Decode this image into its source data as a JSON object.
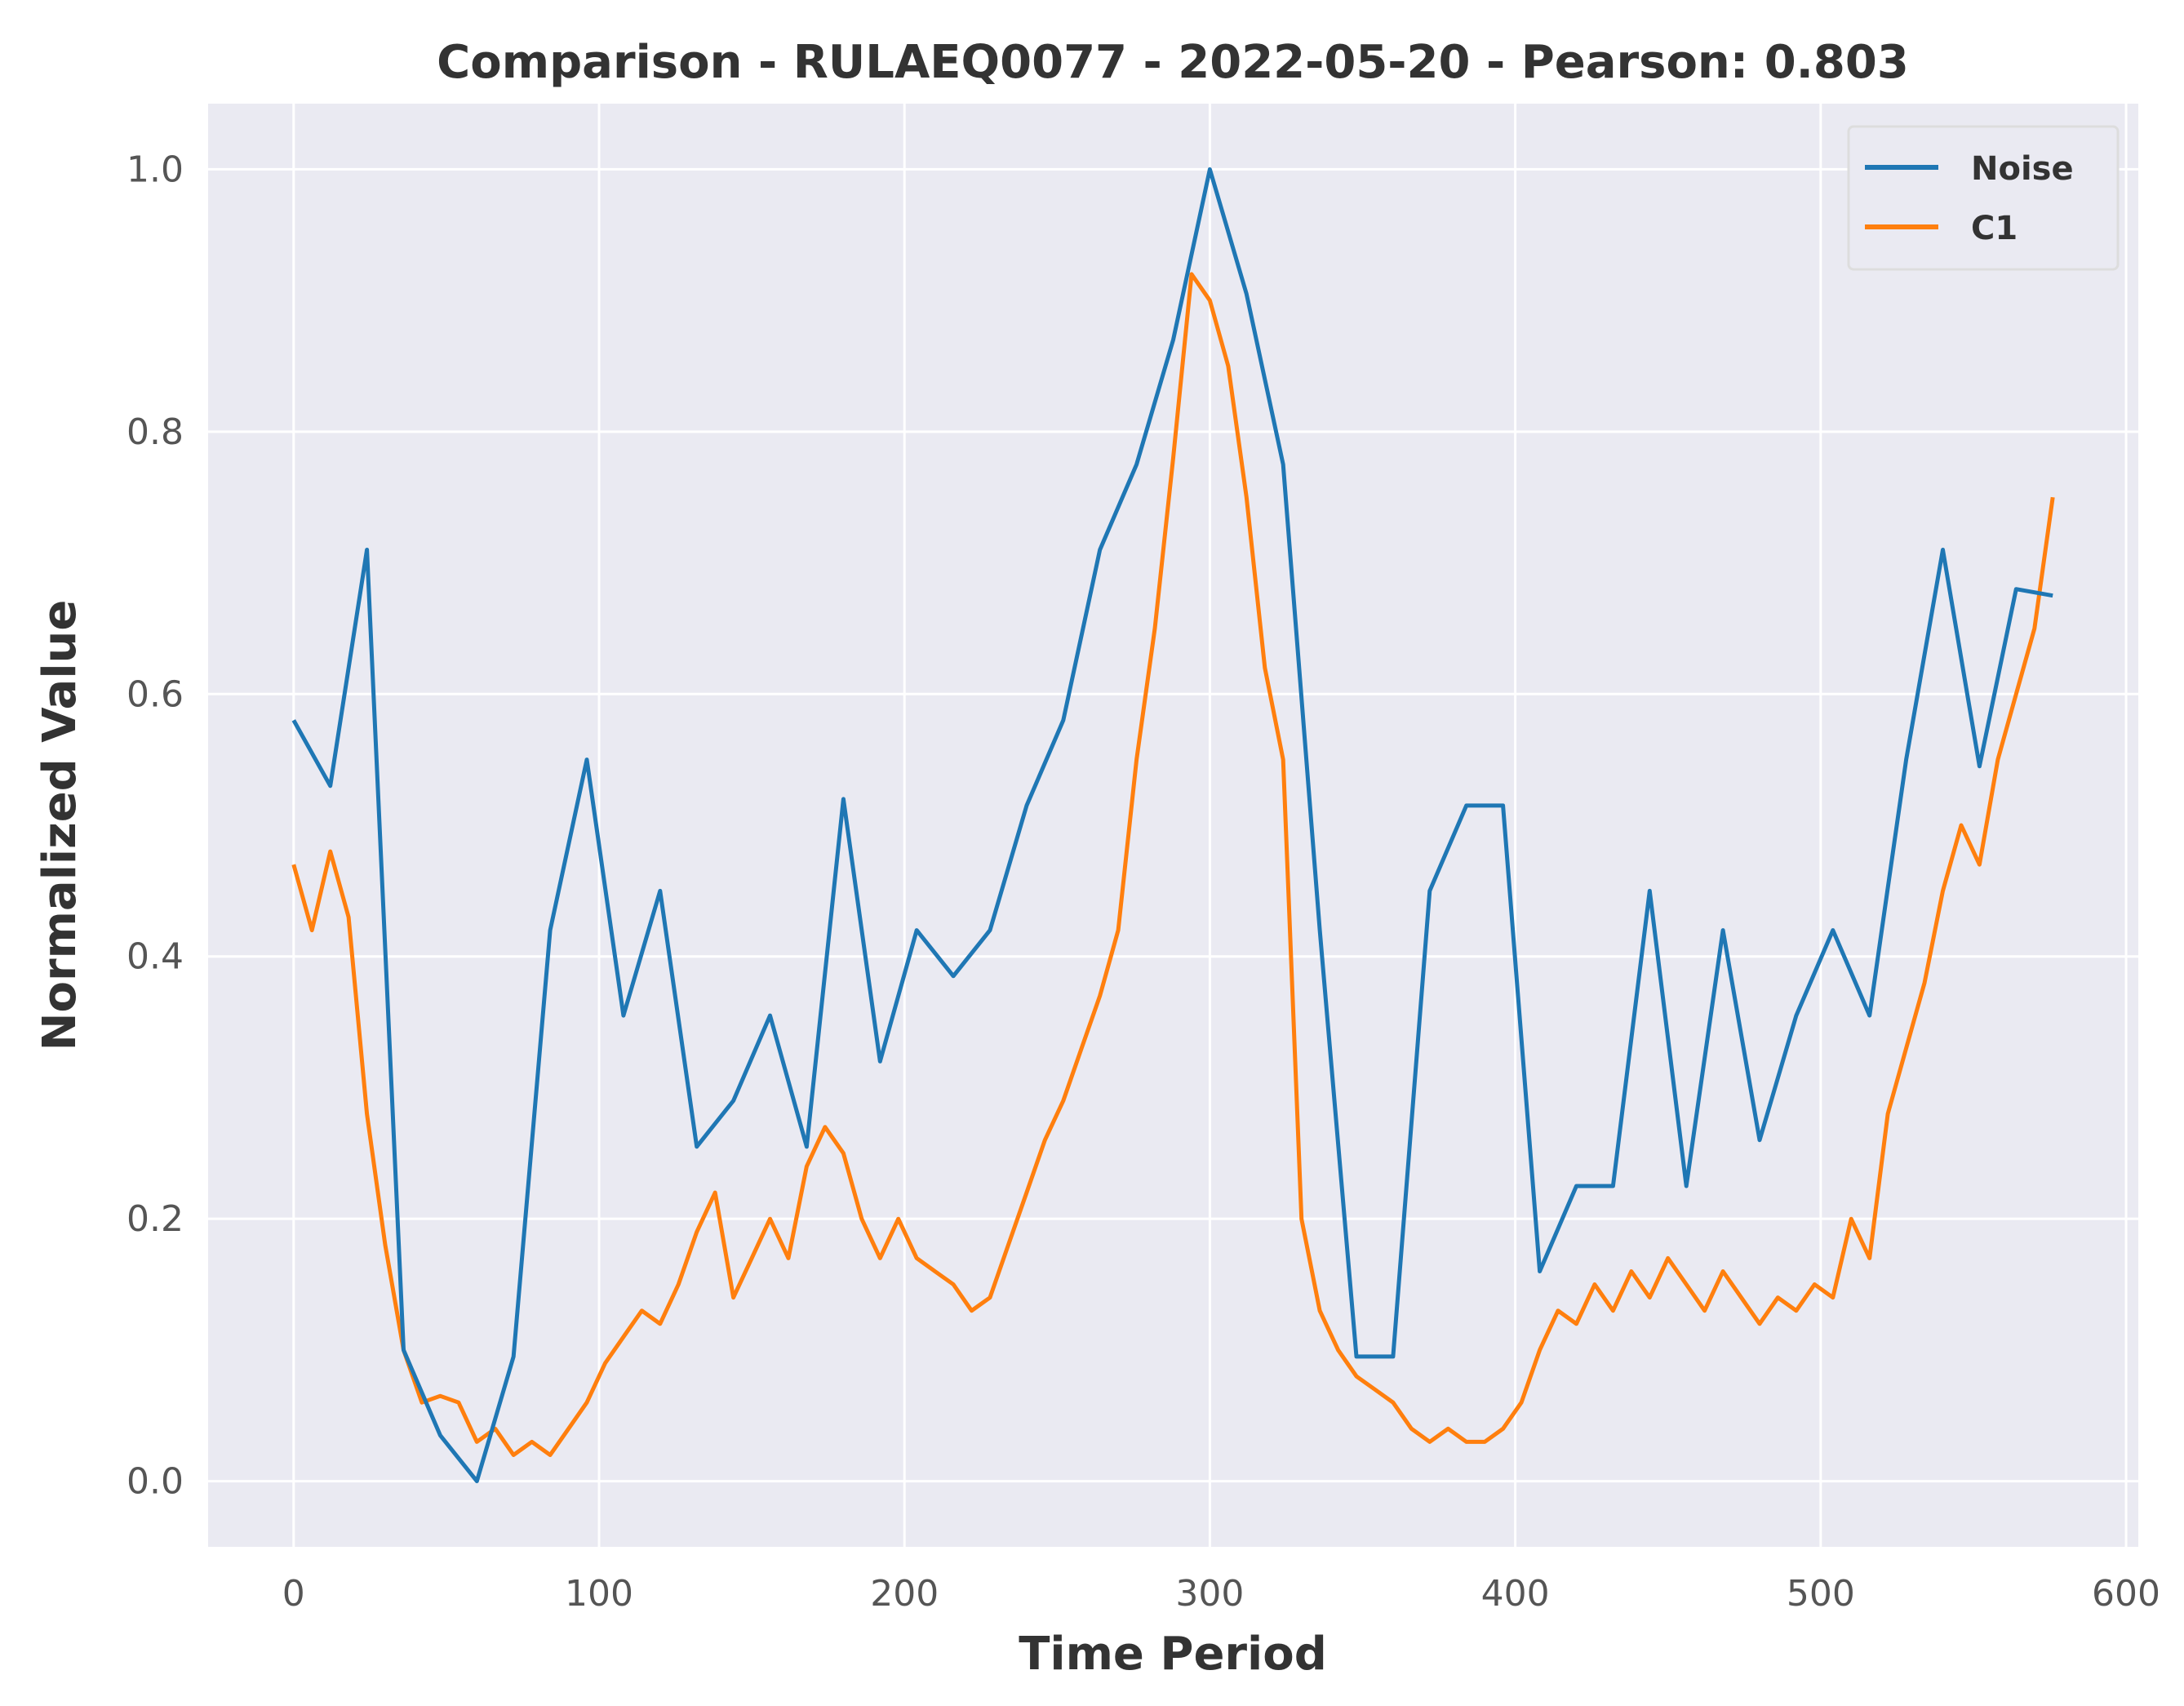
{
  "chart_data": {
    "type": "line",
    "title": "Comparison - RULAEQ0077 - 2022-05-20 - Pearson: 0.803",
    "xlabel": "Time Period",
    "ylabel": "Normalized Value",
    "xlim": [
      -28,
      604
    ],
    "ylim": [
      -0.05,
      1.05
    ],
    "xticks": [
      0,
      100,
      200,
      300,
      400,
      500,
      600
    ],
    "yticks": [
      0.0,
      0.2,
      0.4,
      0.6,
      0.8,
      1.0
    ],
    "xtick_labels": [
      "0",
      "100",
      "200",
      "300",
      "400",
      "500",
      "600"
    ],
    "ytick_labels": [
      "0.0",
      "0.2",
      "0.4",
      "0.6",
      "0.8",
      "1.0"
    ],
    "grid": true,
    "legend_position": "top-right",
    "colors": {
      "background": "#eaeaf2",
      "grid": "#ffffff",
      "noise": "#1f77b4",
      "c1": "#ff7f0e"
    },
    "series": [
      {
        "name": "Noise",
        "x": [
          0,
          12,
          24,
          36,
          48,
          60,
          72,
          84,
          96,
          108,
          120,
          132,
          144,
          156,
          168,
          180,
          192,
          204,
          216,
          228,
          240,
          252,
          264,
          276,
          288,
          300,
          312,
          324,
          336,
          348,
          360,
          372,
          384,
          396,
          408,
          420,
          432,
          444,
          456,
          468,
          480,
          492,
          504,
          516,
          528,
          540,
          552,
          564,
          576
        ],
        "values": [
          0.58,
          0.53,
          0.71,
          0.1,
          0.035,
          0.0,
          0.095,
          0.42,
          0.55,
          0.355,
          0.45,
          0.255,
          0.29,
          0.355,
          0.255,
          0.52,
          0.32,
          0.42,
          0.385,
          0.42,
          0.515,
          0.58,
          0.71,
          0.775,
          0.87,
          1.0,
          0.905,
          0.775,
          0.42,
          0.095,
          0.095,
          0.45,
          0.515,
          0.515,
          0.16,
          0.225,
          0.225,
          0.45,
          0.225,
          0.42,
          0.26,
          0.355,
          0.42,
          0.355,
          0.55,
          0.71,
          0.545,
          0.68,
          0.675
        ]
      },
      {
        "name": "C1",
        "x": [
          0,
          6,
          12,
          18,
          24,
          30,
          36,
          42,
          48,
          54,
          60,
          66,
          72,
          78,
          84,
          90,
          96,
          102,
          108,
          114,
          120,
          126,
          132,
          138,
          144,
          150,
          156,
          162,
          168,
          174,
          180,
          186,
          192,
          198,
          204,
          210,
          216,
          222,
          228,
          234,
          240,
          246,
          252,
          258,
          264,
          270,
          276,
          282,
          288,
          294,
          300,
          306,
          312,
          318,
          324,
          330,
          336,
          342,
          348,
          354,
          360,
          366,
          372,
          378,
          384,
          390,
          396,
          402,
          408,
          414,
          420,
          426,
          432,
          438,
          444,
          450,
          456,
          462,
          468,
          474,
          480,
          486,
          492,
          498,
          504,
          510,
          516,
          522,
          528,
          534,
          540,
          546,
          552,
          558,
          564,
          570,
          576
        ],
        "values": [
          0.47,
          0.42,
          0.48,
          0.43,
          0.28,
          0.18,
          0.1,
          0.06,
          0.065,
          0.06,
          0.03,
          0.04,
          0.02,
          0.03,
          0.02,
          0.04,
          0.06,
          0.09,
          0.11,
          0.13,
          0.12,
          0.15,
          0.19,
          0.22,
          0.14,
          0.17,
          0.2,
          0.17,
          0.24,
          0.27,
          0.25,
          0.2,
          0.17,
          0.2,
          0.17,
          0.16,
          0.15,
          0.13,
          0.14,
          0.18,
          0.22,
          0.26,
          0.29,
          0.33,
          0.37,
          0.42,
          0.55,
          0.65,
          0.78,
          0.92,
          0.9,
          0.85,
          0.75,
          0.62,
          0.55,
          0.2,
          0.13,
          0.1,
          0.08,
          0.07,
          0.06,
          0.04,
          0.03,
          0.04,
          0.03,
          0.03,
          0.04,
          0.06,
          0.1,
          0.13,
          0.12,
          0.15,
          0.13,
          0.16,
          0.14,
          0.17,
          0.15,
          0.13,
          0.16,
          0.14,
          0.12,
          0.14,
          0.13,
          0.15,
          0.14,
          0.2,
          0.17,
          0.28,
          0.33,
          0.38,
          0.45,
          0.5,
          0.47,
          0.55,
          0.6,
          0.65,
          0.75
        ]
      }
    ]
  }
}
